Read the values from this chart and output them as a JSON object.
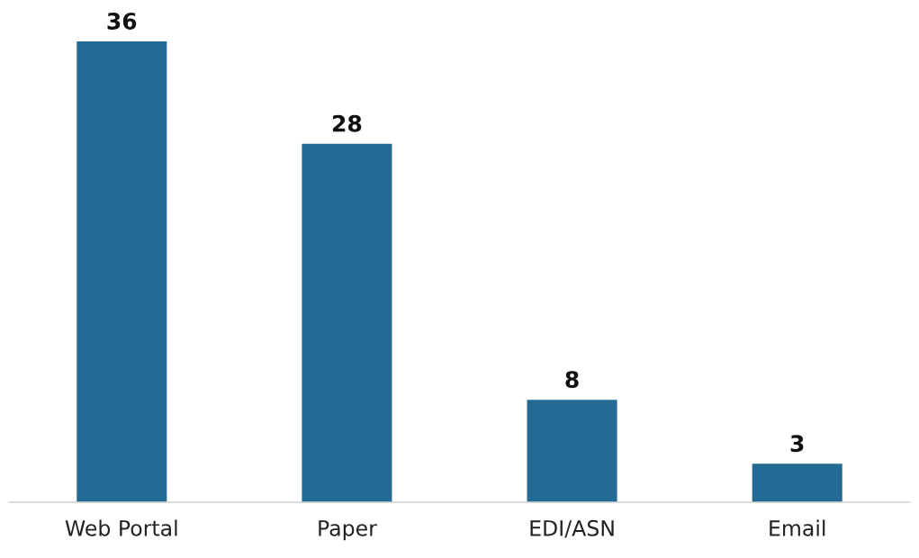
{
  "chart_data": {
    "type": "bar",
    "categories": [
      "Web Portal",
      "Paper",
      "EDI/ASN",
      "Email"
    ],
    "values": [
      36,
      28,
      8,
      3
    ],
    "color": "#236a94",
    "data_labels": true,
    "grid": false,
    "tick_labels": "x"
  }
}
